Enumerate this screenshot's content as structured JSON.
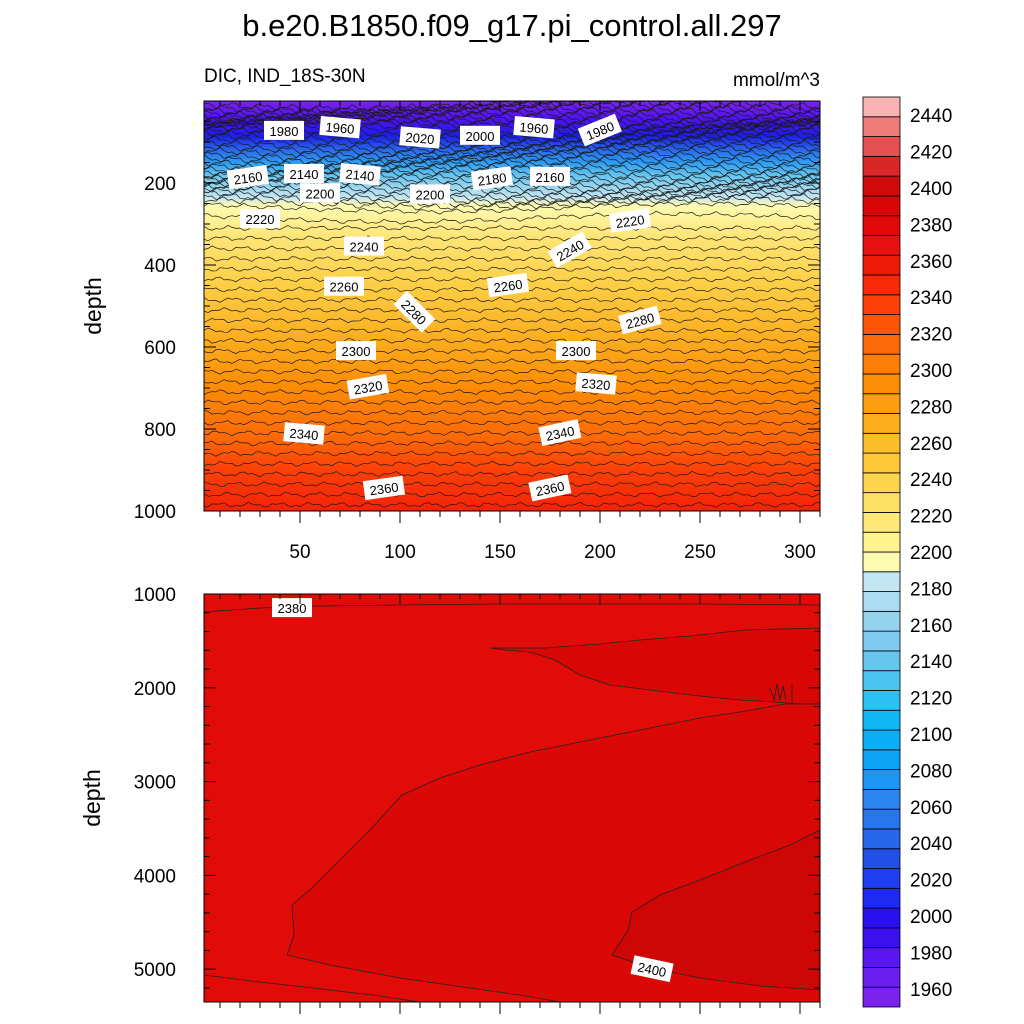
{
  "chart_data": {
    "type": "contour",
    "title": "b.e20.B1850.f09_g17.pi_control.all.297",
    "variable_label": "DIC, IND_18S-30N",
    "units_label": "mmol/m^3",
    "ylabel": "depth",
    "x_ticks": [
      50,
      100,
      150,
      200,
      250,
      300
    ],
    "xlim": [
      2,
      310
    ],
    "panels": [
      {
        "name": "upper",
        "ylim": [
          1000,
          0
        ],
        "y_ticks": [
          200,
          400,
          600,
          800,
          1000
        ],
        "contour_labels": [
          {
            "text": "1980",
            "x": 42,
            "y": 73,
            "angle": 0
          },
          {
            "text": "1960",
            "x": 70,
            "y": 65,
            "angle": 5
          },
          {
            "text": "2020",
            "x": 110,
            "y": 90,
            "angle": 5
          },
          {
            "text": "2000",
            "x": 140,
            "y": 85,
            "angle": 0
          },
          {
            "text": "1960",
            "x": 167,
            "y": 65,
            "angle": 5
          },
          {
            "text": "1980",
            "x": 200,
            "y": 72,
            "angle": -22
          },
          {
            "text": "2160",
            "x": 24,
            "y": 187,
            "angle": -8
          },
          {
            "text": "2140",
            "x": 52,
            "y": 178,
            "angle": 0
          },
          {
            "text": "2140",
            "x": 80,
            "y": 180,
            "angle": 5
          },
          {
            "text": "2180",
            "x": 146,
            "y": 190,
            "angle": -8
          },
          {
            "text": "2160",
            "x": 175,
            "y": 185,
            "angle": 0
          },
          {
            "text": "2200",
            "x": 60,
            "y": 225,
            "angle": 0
          },
          {
            "text": "2200",
            "x": 115,
            "y": 228,
            "angle": 0
          },
          {
            "text": "2220",
            "x": 30,
            "y": 288,
            "angle": 0
          },
          {
            "text": "2220",
            "x": 215,
            "y": 293,
            "angle": -8
          },
          {
            "text": "2240",
            "x": 82,
            "y": 355,
            "angle": 0
          },
          {
            "text": "2240",
            "x": 185,
            "y": 364,
            "angle": -30
          },
          {
            "text": "2260",
            "x": 72,
            "y": 453,
            "angle": 0
          },
          {
            "text": "2260",
            "x": 154,
            "y": 450,
            "angle": -8
          },
          {
            "text": "2280",
            "x": 107,
            "y": 515,
            "angle": 45
          },
          {
            "text": "2280",
            "x": 220,
            "y": 535,
            "angle": -15
          },
          {
            "text": "2300",
            "x": 78,
            "y": 610,
            "angle": 0
          },
          {
            "text": "2300",
            "x": 188,
            "y": 610,
            "angle": 0
          },
          {
            "text": "2320",
            "x": 84,
            "y": 698,
            "angle": -10
          },
          {
            "text": "2320",
            "x": 198,
            "y": 690,
            "angle": 5
          },
          {
            "text": "2340",
            "x": 52,
            "y": 812,
            "angle": 5
          },
          {
            "text": "2340",
            "x": 180,
            "y": 810,
            "angle": -12
          },
          {
            "text": "2360",
            "x": 92,
            "y": 945,
            "angle": -8
          },
          {
            "text": "2360",
            "x": 175,
            "y": 945,
            "angle": -12
          }
        ]
      },
      {
        "name": "lower",
        "ylim": [
          5350,
          1000
        ],
        "y_ticks": [
          1000,
          2000,
          3000,
          4000,
          5000
        ],
        "contour_labels": [
          {
            "text": "2380",
            "x": 46,
            "y": 1150,
            "angle": 0
          },
          {
            "text": "2400",
            "x": 226,
            "y": 5000,
            "angle": 12
          }
        ]
      }
    ],
    "colorbar": {
      "labels": [
        1960,
        1980,
        2000,
        2020,
        2040,
        2060,
        2080,
        2100,
        2120,
        2140,
        2160,
        2180,
        2200,
        2220,
        2240,
        2260,
        2280,
        2300,
        2320,
        2340,
        2360,
        2380,
        2400,
        2420,
        2440
      ],
      "colors": [
        "#7b22ee",
        "#6a1ff0",
        "#5916f2",
        "#3b10ee",
        "#2a10ee",
        "#1f2af0",
        "#1f3ef0",
        "#2050e6",
        "#2666e8",
        "#2876ec",
        "#2b86ef",
        "#1c98f4",
        "#0ca5f5",
        "#0aaff6",
        "#12b8f5",
        "#2cc0f5",
        "#4cc4f2",
        "#66c6ee",
        "#7ecbef",
        "#94d2ed",
        "#acdcf1",
        "#c4e6f4",
        "#fefbb1",
        "#fef38e",
        "#fee877",
        "#fde063",
        "#fdd54d",
        "#fdc93a",
        "#fcbe28",
        "#fcae1a",
        "#fc9e0d",
        "#fc8e06",
        "#fc7d08",
        "#fc6a08",
        "#fc5508",
        "#fc4008",
        "#f82a08",
        "#ee1a08",
        "#e81010",
        "#e00808",
        "#d80606",
        "#cf0c0c",
        "#d92626",
        "#e65050",
        "#ee7a7a",
        "#f8b2b2"
      ]
    }
  }
}
